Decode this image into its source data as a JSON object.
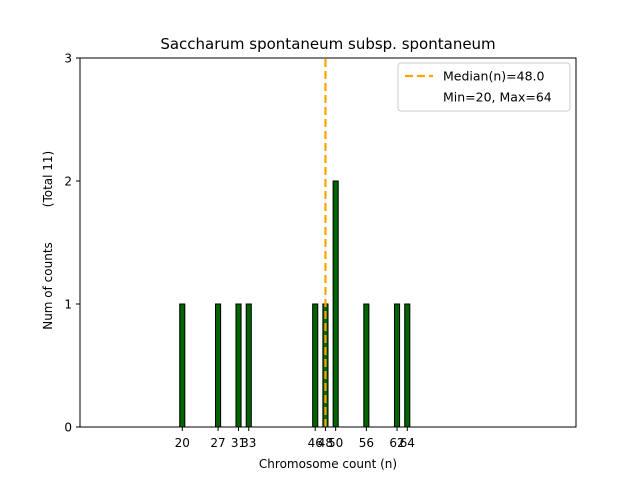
{
  "chart_data": {
    "type": "bar",
    "title": "Saccharum spontaneum subsp. spontaneum",
    "xlabel": "Chromosome count (n)",
    "ylabel": "Num of counts",
    "ylabel_total": "(Total 11)",
    "x": [
      20,
      27,
      31,
      33,
      46,
      48,
      50,
      56,
      62,
      64
    ],
    "values": [
      1,
      1,
      1,
      1,
      1,
      1,
      2,
      1,
      1,
      1
    ],
    "xticks": [
      20,
      27,
      31,
      33,
      46,
      48,
      50,
      56,
      62,
      64
    ],
    "yticks": [
      0,
      1,
      2,
      3
    ],
    "xlim": [
      0,
      97
    ],
    "ylim": [
      0,
      3
    ],
    "bar_color": "#006400",
    "median": 48.0,
    "median_color": "#FFA500",
    "legend": {
      "position": "top-right",
      "median_label": "Median(n)=48.0",
      "range_label": "Min=20, Max=64"
    },
    "grid": false
  }
}
